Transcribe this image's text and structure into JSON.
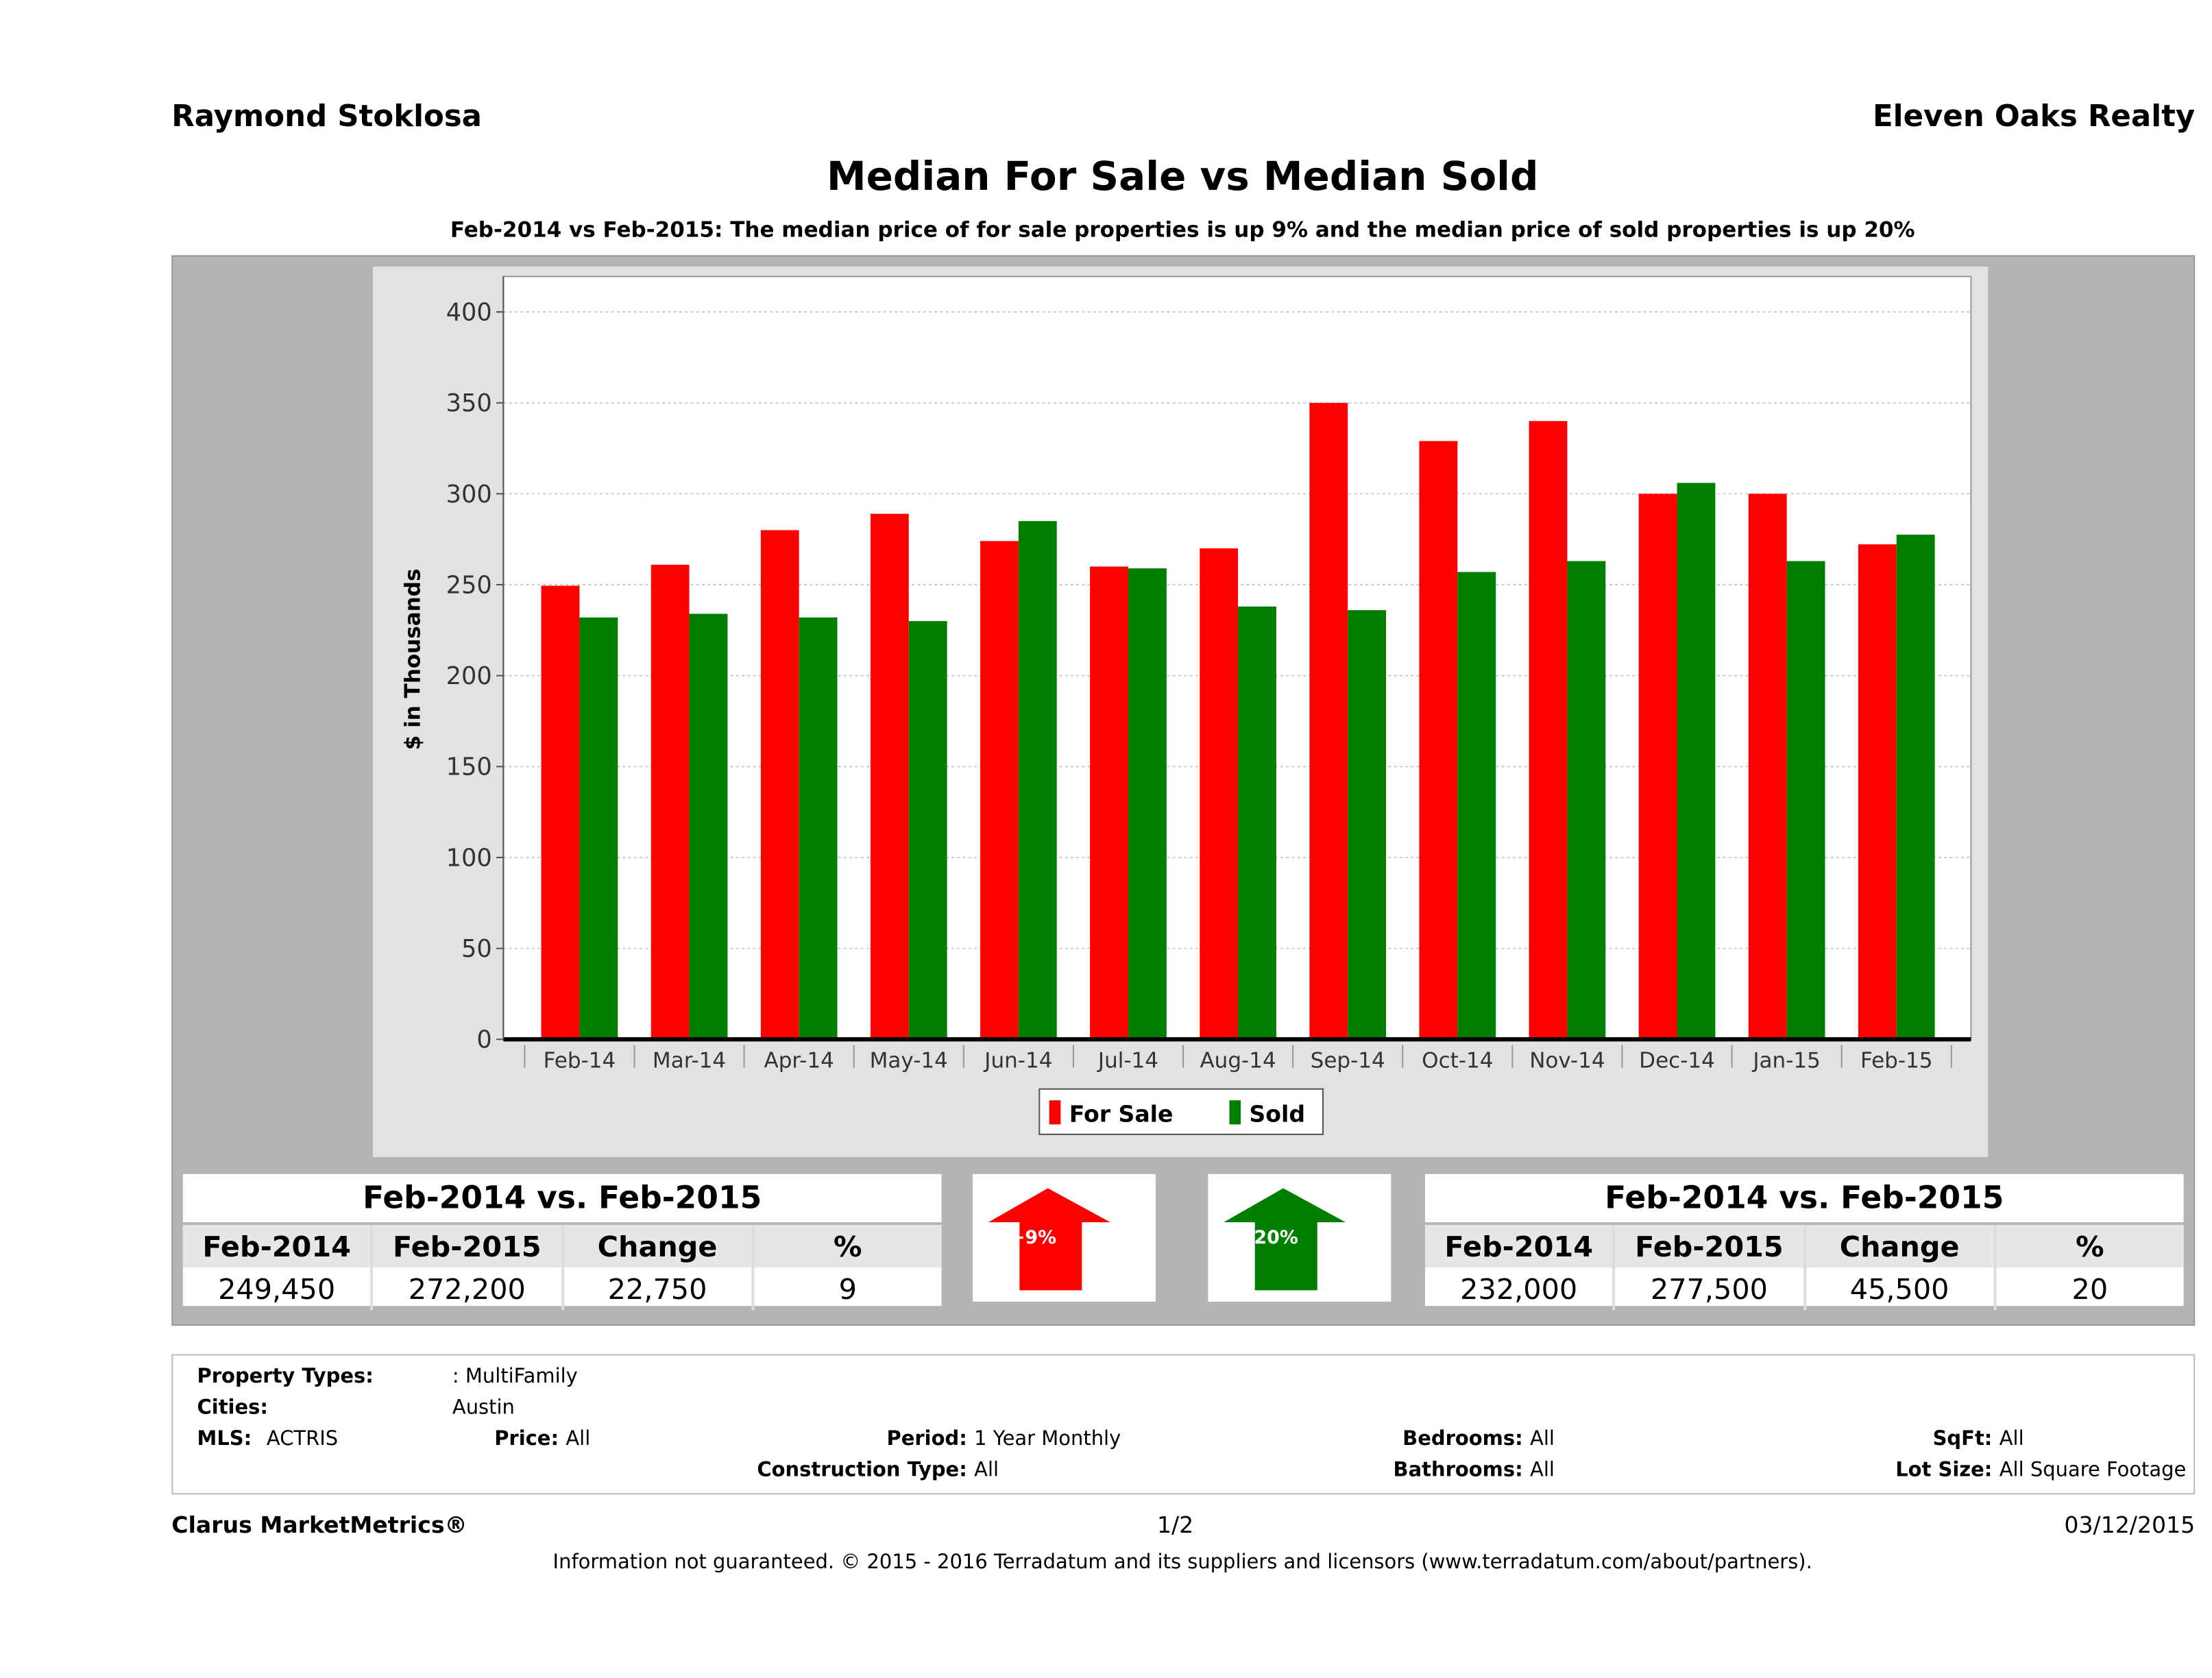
{
  "header": {
    "agent": "Raymond Stoklosa",
    "brokerage": "Eleven Oaks Realty"
  },
  "chart_data": {
    "type": "bar",
    "title": "Median For Sale vs Median Sold",
    "subtitle": "Feb-2014 vs Feb-2015: The median price of for sale properties is up 9% and the median price of sold properties is up 20%",
    "xlabel": "",
    "ylabel": "$ in Thousands",
    "ylim": [
      0,
      400
    ],
    "yticks": [
      0,
      50,
      100,
      150,
      200,
      250,
      300,
      350,
      400
    ],
    "grid": true,
    "legend_position": "bottom-center",
    "categories": [
      "Feb-14",
      "Mar-14",
      "Apr-14",
      "May-14",
      "Jun-14",
      "Jul-14",
      "Aug-14",
      "Sep-14",
      "Oct-14",
      "Nov-14",
      "Dec-14",
      "Jan-15",
      "Feb-15"
    ],
    "series": [
      {
        "name": "For Sale",
        "color": "#ff0000",
        "values": [
          249.45,
          261,
          280,
          289,
          274,
          260,
          270,
          350,
          329,
          340,
          300,
          300,
          272.2
        ]
      },
      {
        "name": "Sold",
        "color": "#007f00",
        "values": [
          232,
          234,
          232,
          230,
          285,
          259,
          238,
          236,
          257,
          263,
          306,
          263,
          277.5
        ]
      }
    ]
  },
  "for_sale_table": {
    "title": "Feb-2014 vs. Feb-2015",
    "headers": [
      "Feb-2014",
      "Feb-2015",
      "Change",
      "%"
    ],
    "values": [
      "249,450",
      "272,200",
      "22,750",
      "9"
    ],
    "badge": "+9%",
    "color": "#ff0000"
  },
  "sold_table": {
    "title": "Feb-2014 vs. Feb-2015",
    "headers": [
      "Feb-2014",
      "Feb-2015",
      "Change",
      "%"
    ],
    "values": [
      "232,000",
      "277,500",
      "45,500",
      "20"
    ],
    "badge": "+20%",
    "color": "#007f00"
  },
  "criteria": {
    "property_types_label": "Property Types:",
    "property_types": ": MultiFamily",
    "cities_label": "Cities:",
    "cities": "Austin",
    "mls_label": "MLS:",
    "mls": "ACTRIS",
    "price_label": "Price:",
    "price": "All",
    "period_label": "Period:",
    "period": "1 Year Monthly",
    "construction_label": "Construction Type:",
    "construction": "All",
    "bedrooms_label": "Bedrooms:",
    "bedrooms": "All",
    "bathrooms_label": "Bathrooms:",
    "bathrooms": "All",
    "sqft_label": "SqFt:",
    "sqft": "All",
    "lot_label": "Lot Size:",
    "lot": "All Square Footage"
  },
  "footer": {
    "product": "Clarus MarketMetrics®",
    "page": "1/2",
    "date": "03/12/2015",
    "disclaimer": "Information not guaranteed. © 2015 - 2016 Terradatum and its suppliers and licensors (www.terradatum.com/about/partners)."
  }
}
